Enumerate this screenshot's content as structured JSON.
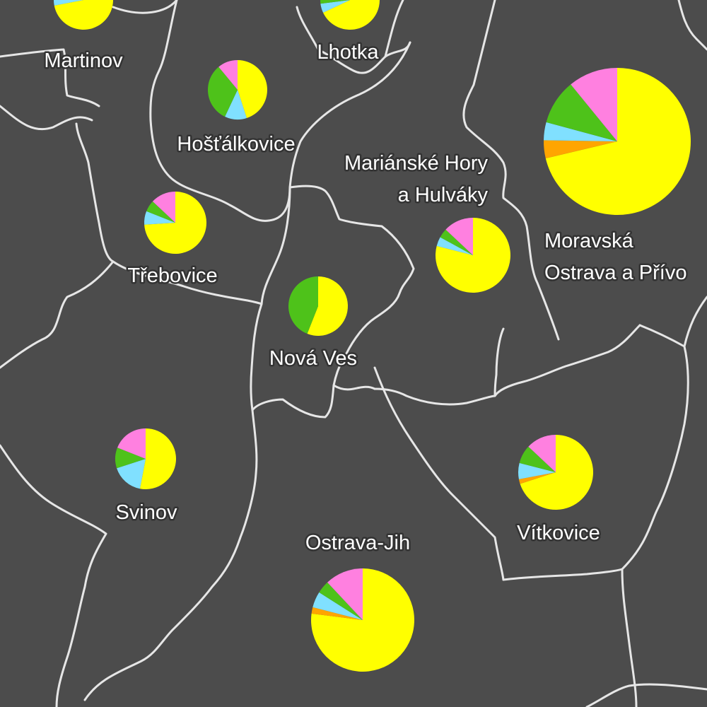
{
  "palette": {
    "yellow": "#ffff00",
    "pink": "#ff80e0",
    "green": "#4ec21a",
    "cyan": "#80e0ff",
    "orange": "#ffa500"
  },
  "districts": [
    {
      "id": "martinov",
      "label_lines": [
        "Martinov"
      ],
      "shares": {
        "yellow": 0.72,
        "pink": 0.18,
        "green": 0.06,
        "cyan": 0.04,
        "orange": 0
      }
    },
    {
      "id": "lhotka",
      "label_lines": [
        "Lhotka"
      ],
      "shares": {
        "yellow": 0.68,
        "pink": 0.22,
        "green": 0.05,
        "cyan": 0.05,
        "orange": 0
      }
    },
    {
      "id": "hostalkovice",
      "label_lines": [
        "Hošťálkovice"
      ],
      "shares": {
        "yellow": 0.45,
        "pink": 0.11,
        "green": 0.32,
        "cyan": 0.12,
        "orange": 0
      }
    },
    {
      "id": "marianske-hory",
      "label_lines": [
        "Mariánské Hory",
        "a Hulváky"
      ],
      "shares": {
        "yellow": 0.79,
        "pink": 0.13,
        "green": 0.04,
        "cyan": 0.04,
        "orange": 0
      }
    },
    {
      "id": "moravska-ostrava",
      "label_lines": [
        "Moravská",
        "Ostrava a Přívo"
      ],
      "shares": {
        "yellow": 0.72,
        "pink": 0.11,
        "green": 0.1,
        "cyan": 0.04,
        "orange": 0.04
      }
    },
    {
      "id": "trebovice",
      "label_lines": [
        "Třebovice"
      ],
      "shares": {
        "yellow": 0.74,
        "pink": 0.13,
        "green": 0.06,
        "cyan": 0.07,
        "orange": 0
      }
    },
    {
      "id": "nova-ves",
      "label_lines": [
        "Nová Ves"
      ],
      "shares": {
        "yellow": 0.56,
        "pink": 0,
        "green": 0.44,
        "cyan": 0,
        "orange": 0
      }
    },
    {
      "id": "svinov",
      "label_lines": [
        "Svinov"
      ],
      "shares": {
        "yellow": 0.53,
        "pink": 0.19,
        "green": 0.11,
        "cyan": 0.17,
        "orange": 0
      }
    },
    {
      "id": "vitkovice",
      "label_lines": [
        "Vítkovice"
      ],
      "shares": {
        "yellow": 0.7,
        "pink": 0.13,
        "green": 0.08,
        "cyan": 0.07,
        "orange": 0.02
      }
    },
    {
      "id": "ostrava-jih",
      "label_lines": [
        "Ostrava-Jih"
      ],
      "shares": {
        "yellow": 0.77,
        "pink": 0.12,
        "green": 0.04,
        "cyan": 0.05,
        "orange": 0.02
      }
    }
  ]
}
